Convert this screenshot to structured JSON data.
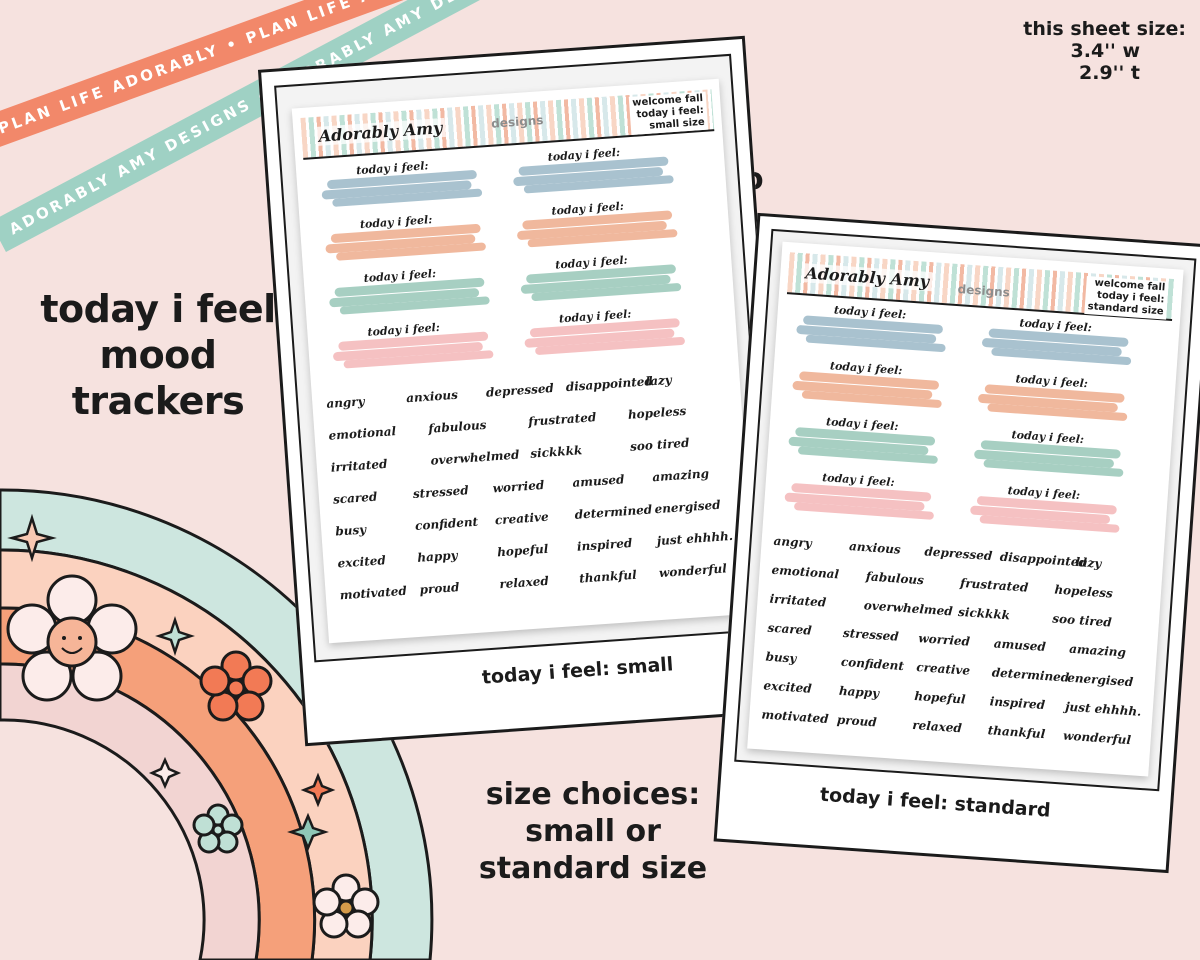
{
  "ribbons": {
    "coral": "PLAN LIFE ADORABLY • PLAN LIFE ADORABLY • PLAN LIFE ADORABLY",
    "mint": "ADORABLY AMY DESIGNS • ADORABLY AMY DESIGNS • ADORABLY AMY DESIGNS"
  },
  "headline": [
    "today i feel",
    "mood",
    "trackers"
  ],
  "sheet_size": [
    "this sheet size:",
    "3.4'' w",
    "2.9'' t"
  ],
  "size_choices": [
    "size choices:",
    "small or",
    "standard size"
  ],
  "or_mark": "o",
  "colors": {
    "background": "#f6e2df",
    "blue": "#a9c2cf",
    "peach": "#f0b89d",
    "mint": "#a7cfc2",
    "pink": "#f5c1c2",
    "coral": "#f2886a"
  },
  "brand": "Adorably Amy",
  "brand_sub": "designs",
  "small": {
    "title": [
      "welcome fall",
      "today i feel:",
      "small size"
    ],
    "caption": "today i feel: small",
    "tracker_label": "today i feel:",
    "words": [
      [
        "angry",
        "anxious",
        "depressed",
        "disappointed",
        "lazy"
      ],
      [
        "emotional",
        "fabulous",
        "frustrated",
        "hopeless"
      ],
      [
        "irritated",
        "overwhelmed",
        "sickkkk",
        "soo tired"
      ],
      [
        "scared",
        "stressed",
        "worried",
        "amused",
        "amazing"
      ],
      [
        "busy",
        "confident",
        "creative",
        "determined",
        "energised"
      ],
      [
        "excited",
        "happy",
        "hopeful",
        "inspired",
        "just ehhhh."
      ],
      [
        "motivated",
        "proud",
        "relaxed",
        "thankful",
        "wonderful"
      ]
    ]
  },
  "standard": {
    "title": [
      "welcome fall",
      "today i feel:",
      "standard size"
    ],
    "caption": "today i feel: standard",
    "tracker_label": "today i feel:",
    "words": [
      [
        "angry",
        "anxious",
        "depressed",
        "disappointed",
        "lazy"
      ],
      [
        "emotional",
        "fabulous",
        "frustrated",
        "hopeless"
      ],
      [
        "irritated",
        "overwhelmed",
        "sickkkk",
        "soo tired"
      ],
      [
        "scared",
        "stressed",
        "worried",
        "amused",
        "amazing"
      ],
      [
        "busy",
        "confident",
        "creative",
        "determined",
        "energised"
      ],
      [
        "excited",
        "happy",
        "hopeful",
        "inspired",
        "just ehhhh."
      ],
      [
        "motivated",
        "proud",
        "relaxed",
        "thankful",
        "wonderful"
      ]
    ]
  }
}
